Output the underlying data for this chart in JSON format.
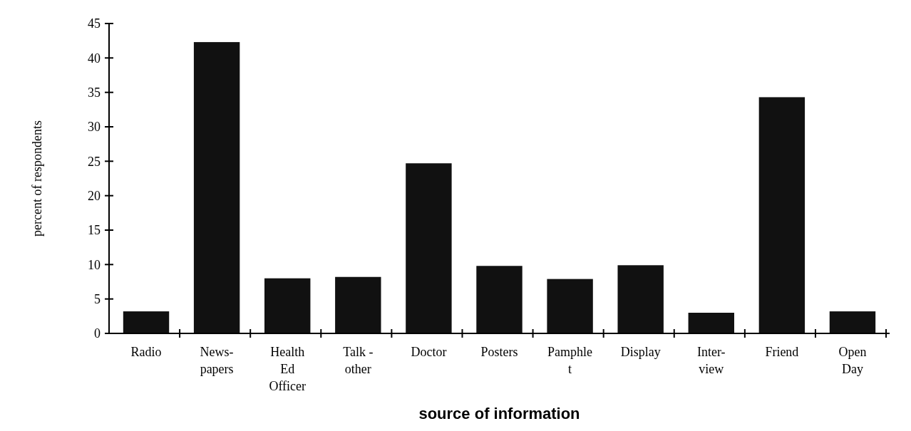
{
  "chart_data": {
    "type": "bar",
    "xlabel": "source of information",
    "ylabel": "percent of respondents",
    "categories": [
      "Radio",
      "News-\npapers",
      "Health\nEd\nOfficer",
      "Talk -\nother",
      "Doctor",
      "Posters",
      "Pamphle\nt",
      "Display",
      "Inter-\nview",
      "Friend",
      "Open\nDay"
    ],
    "values": [
      3.2,
      42.3,
      8,
      8.2,
      24.7,
      9.8,
      7.9,
      9.9,
      3,
      34.3,
      3.2
    ],
    "color": "#111111",
    "ylim": [
      0,
      45
    ],
    "yticks": [
      0,
      5,
      10,
      15,
      20,
      25,
      30,
      35,
      40,
      45
    ],
    "grid": false
  }
}
